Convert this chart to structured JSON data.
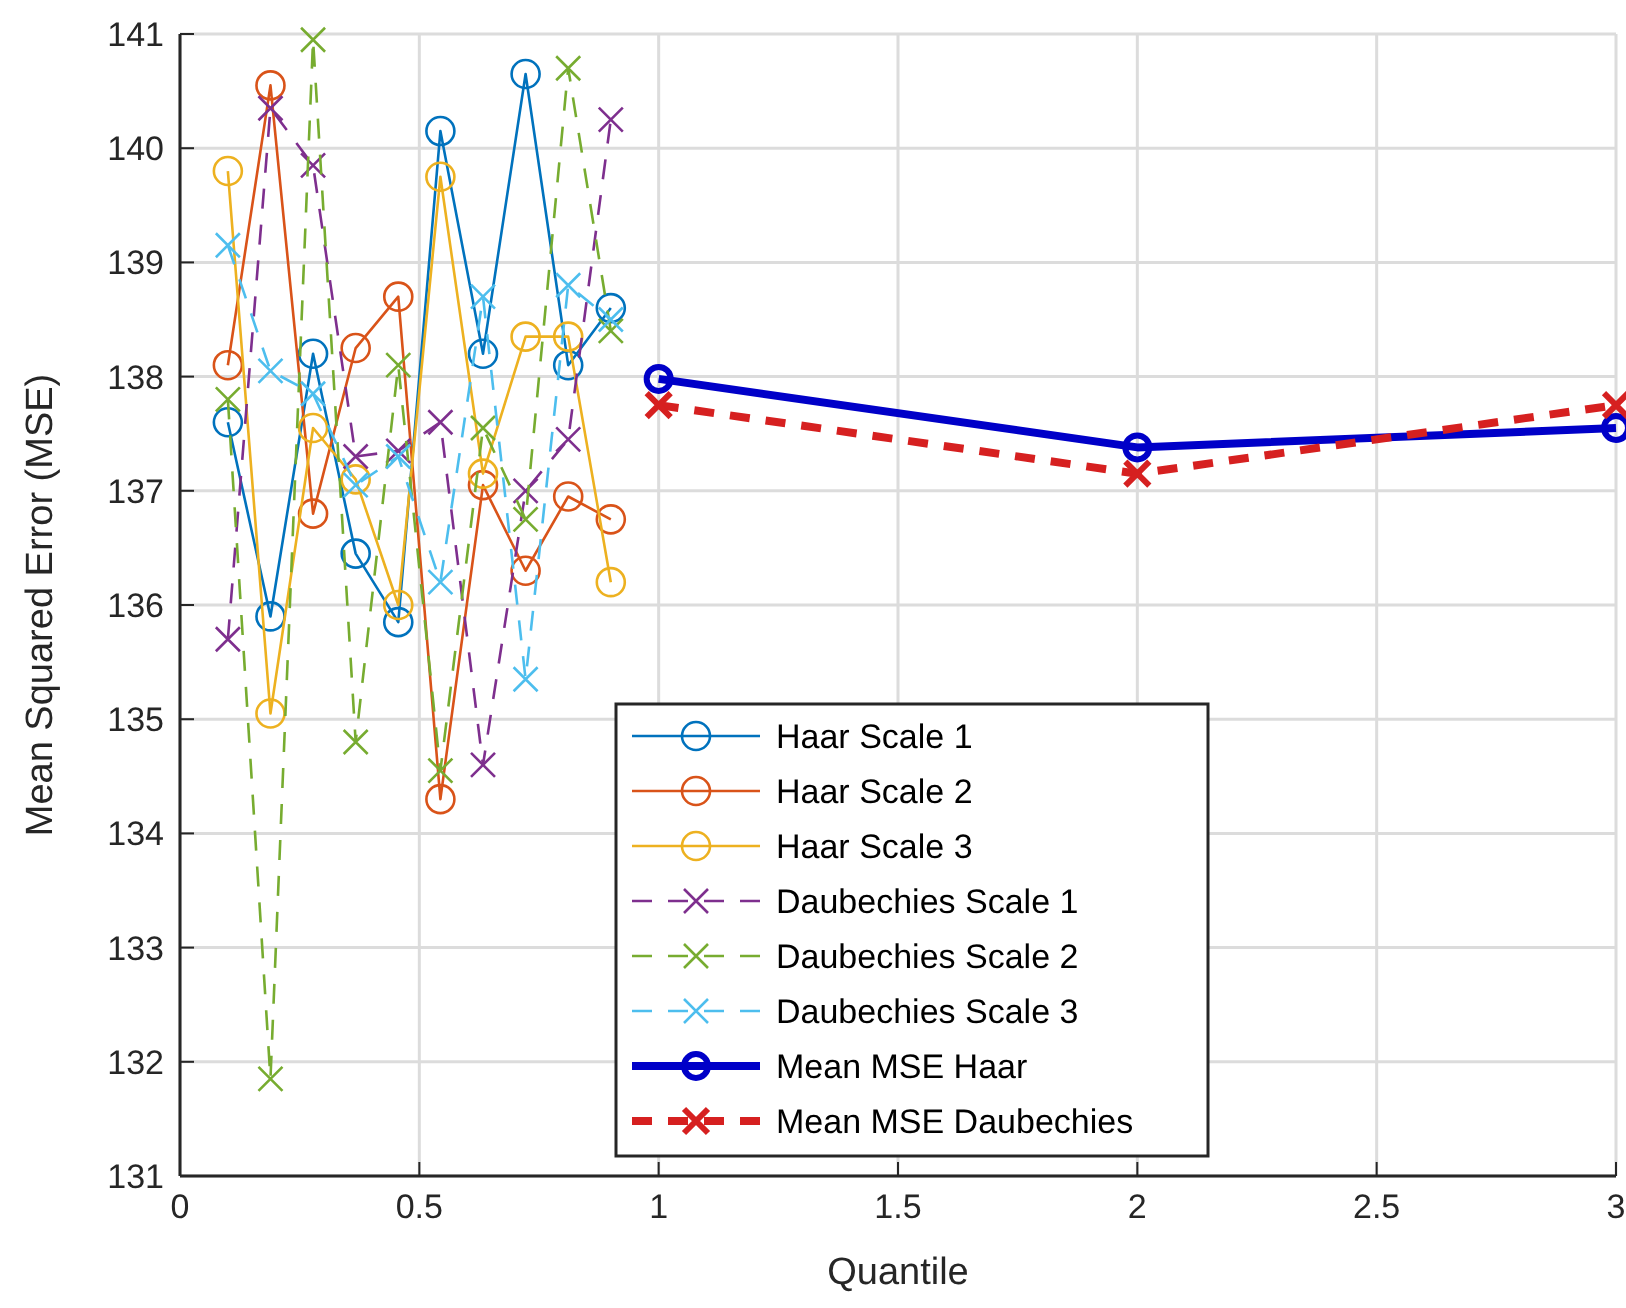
{
  "chart_data": {
    "type": "line",
    "xlabel": "Quantile",
    "ylabel": "Mean Squared Error (MSE)",
    "xlim": [
      0,
      3
    ],
    "xticks": [
      0,
      0.5,
      1,
      1.5,
      2,
      2.5,
      3
    ],
    "ylim": [
      131,
      141
    ],
    "yticks": [
      131,
      132,
      133,
      134,
      135,
      136,
      137,
      138,
      139,
      140,
      141
    ],
    "grid": true,
    "legend": "bottom",
    "series": [
      {
        "name": "Haar Scale 1",
        "color": "#0072bd",
        "marker": "circle",
        "line_style": "solid",
        "x": [
          0.1,
          0.189,
          0.278,
          0.367,
          0.456,
          0.544,
          0.633,
          0.722,
          0.811,
          0.9
        ],
        "values": [
          137.6,
          135.9,
          138.2,
          136.45,
          135.85,
          140.15,
          138.2,
          140.65,
          138.1,
          138.6
        ]
      },
      {
        "name": "Haar Scale 2",
        "color": "#d95319",
        "marker": "circle",
        "line_style": "solid",
        "x": [
          0.1,
          0.189,
          0.278,
          0.367,
          0.456,
          0.544,
          0.633,
          0.722,
          0.811,
          0.9
        ],
        "values": [
          138.1,
          140.55,
          136.8,
          138.25,
          138.7,
          134.3,
          137.05,
          136.3,
          136.95,
          136.75
        ]
      },
      {
        "name": "Haar Scale 3",
        "color": "#edb120",
        "marker": "circle",
        "line_style": "solid",
        "x": [
          0.1,
          0.189,
          0.278,
          0.367,
          0.456,
          0.544,
          0.633,
          0.722,
          0.811,
          0.9
        ],
        "values": [
          139.8,
          135.05,
          137.55,
          137.1,
          136.0,
          139.75,
          137.15,
          138.35,
          138.35,
          136.2
        ]
      },
      {
        "name": "Daubechies Scale 1",
        "color": "#7e2f8e",
        "marker": "cross",
        "line_style": "dashed",
        "x": [
          0.1,
          0.189,
          0.278,
          0.367,
          0.456,
          0.544,
          0.633,
          0.722,
          0.811,
          0.9
        ],
        "values": [
          135.7,
          140.35,
          139.85,
          137.3,
          137.35,
          137.6,
          134.6,
          137.0,
          137.45,
          140.25
        ]
      },
      {
        "name": "Daubechies Scale 2",
        "color": "#77ac30",
        "marker": "cross",
        "line_style": "dashed",
        "x": [
          0.1,
          0.189,
          0.278,
          0.367,
          0.456,
          0.544,
          0.633,
          0.722,
          0.811,
          0.9
        ],
        "values": [
          137.8,
          131.85,
          140.95,
          134.8,
          138.1,
          134.55,
          137.55,
          136.75,
          140.7,
          138.4
        ]
      },
      {
        "name": "Daubechies Scale 3",
        "color": "#4dbeee",
        "marker": "cross",
        "line_style": "dashed",
        "x": [
          0.1,
          0.189,
          0.278,
          0.367,
          0.456,
          0.544,
          0.633,
          0.722,
          0.811,
          0.9
        ],
        "values": [
          139.15,
          138.05,
          137.85,
          137.05,
          137.3,
          136.2,
          138.7,
          135.35,
          138.8,
          138.5
        ]
      },
      {
        "name": "Mean MSE Haar",
        "color": "#0000c8",
        "marker": "circle",
        "line_style": "solid",
        "x": [
          1,
          2,
          3
        ],
        "values": [
          137.98,
          137.38,
          137.55
        ]
      },
      {
        "name": "Mean MSE Daubechies",
        "color": "#d62020",
        "marker": "cross",
        "line_style": "dashed",
        "x": [
          1,
          2,
          3
        ],
        "values": [
          137.75,
          137.15,
          137.75
        ]
      }
    ]
  }
}
